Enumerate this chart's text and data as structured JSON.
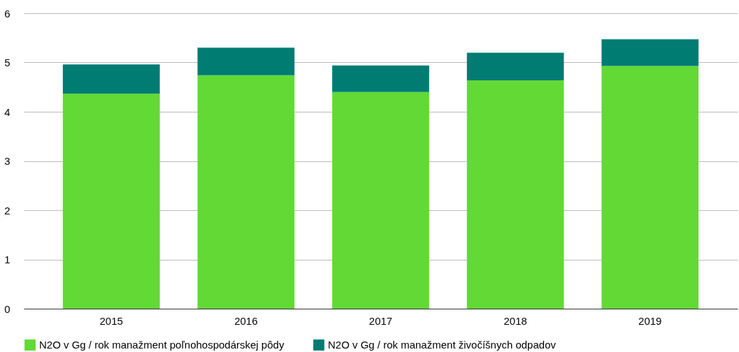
{
  "chart_data": {
    "type": "bar",
    "stacked": true,
    "categories": [
      "2015",
      "2016",
      "2017",
      "2018",
      "2019"
    ],
    "series": [
      {
        "name": "N2O v Gg / rok manažment poľnohospodárskej pôdy",
        "color": "#62d935",
        "values": [
          4.37,
          4.74,
          4.4,
          4.64,
          4.93
        ]
      },
      {
        "name": "N2O v Gg / rok manažment živočíšnych odpadov",
        "color": "#007c73",
        "values": [
          0.59,
          0.56,
          0.54,
          0.56,
          0.54
        ]
      }
    ],
    "ylim": [
      0,
      6
    ],
    "yticks": [
      0,
      1,
      2,
      3,
      4,
      5,
      6
    ],
    "grid": "y",
    "legend": "bottom"
  }
}
